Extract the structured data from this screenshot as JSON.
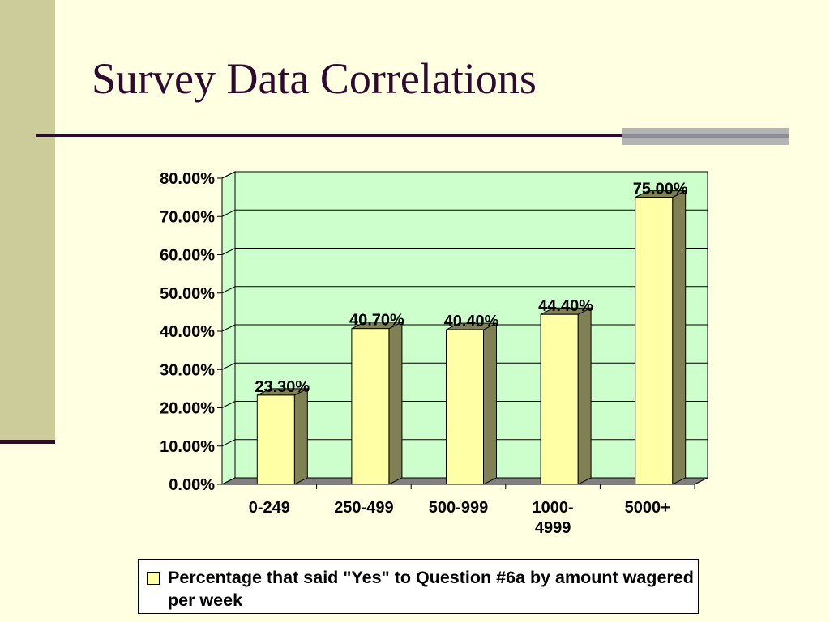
{
  "slide": {
    "title": "Survey Data Correlations"
  },
  "colors": {
    "background": "#ffffe1",
    "title": "#2f0a2f",
    "plot_area": "#ccffcc",
    "bar_front": "#ffffa5",
    "bar_side": "#808055"
  },
  "chart_data": {
    "type": "bar",
    "categories": [
      "0-249",
      "250-499",
      "500-999",
      "1000-4999",
      "5000+"
    ],
    "category_label_lines": [
      [
        "0-249"
      ],
      [
        "250-499"
      ],
      [
        "500-999"
      ],
      [
        "1000-",
        "4999"
      ],
      [
        "5000+"
      ]
    ],
    "series": [
      {
        "name": "Percentage that said \"Yes\" to Question #6a by amount wagered per week",
        "values": [
          23.3,
          40.7,
          40.4,
          44.4,
          75.0
        ]
      }
    ],
    "data_labels": [
      "23.30%",
      "40.70%",
      "40.40%",
      "44.40%",
      "75.00%"
    ],
    "yticks": [
      "0.00%",
      "10.00%",
      "20.00%",
      "30.00%",
      "40.00%",
      "50.00%",
      "60.00%",
      "70.00%",
      "80.00%"
    ],
    "ylim": [
      0,
      80
    ],
    "title": "",
    "xlabel": "",
    "ylabel": "",
    "grid": true,
    "legend_position": "bottom",
    "three_d": true
  }
}
